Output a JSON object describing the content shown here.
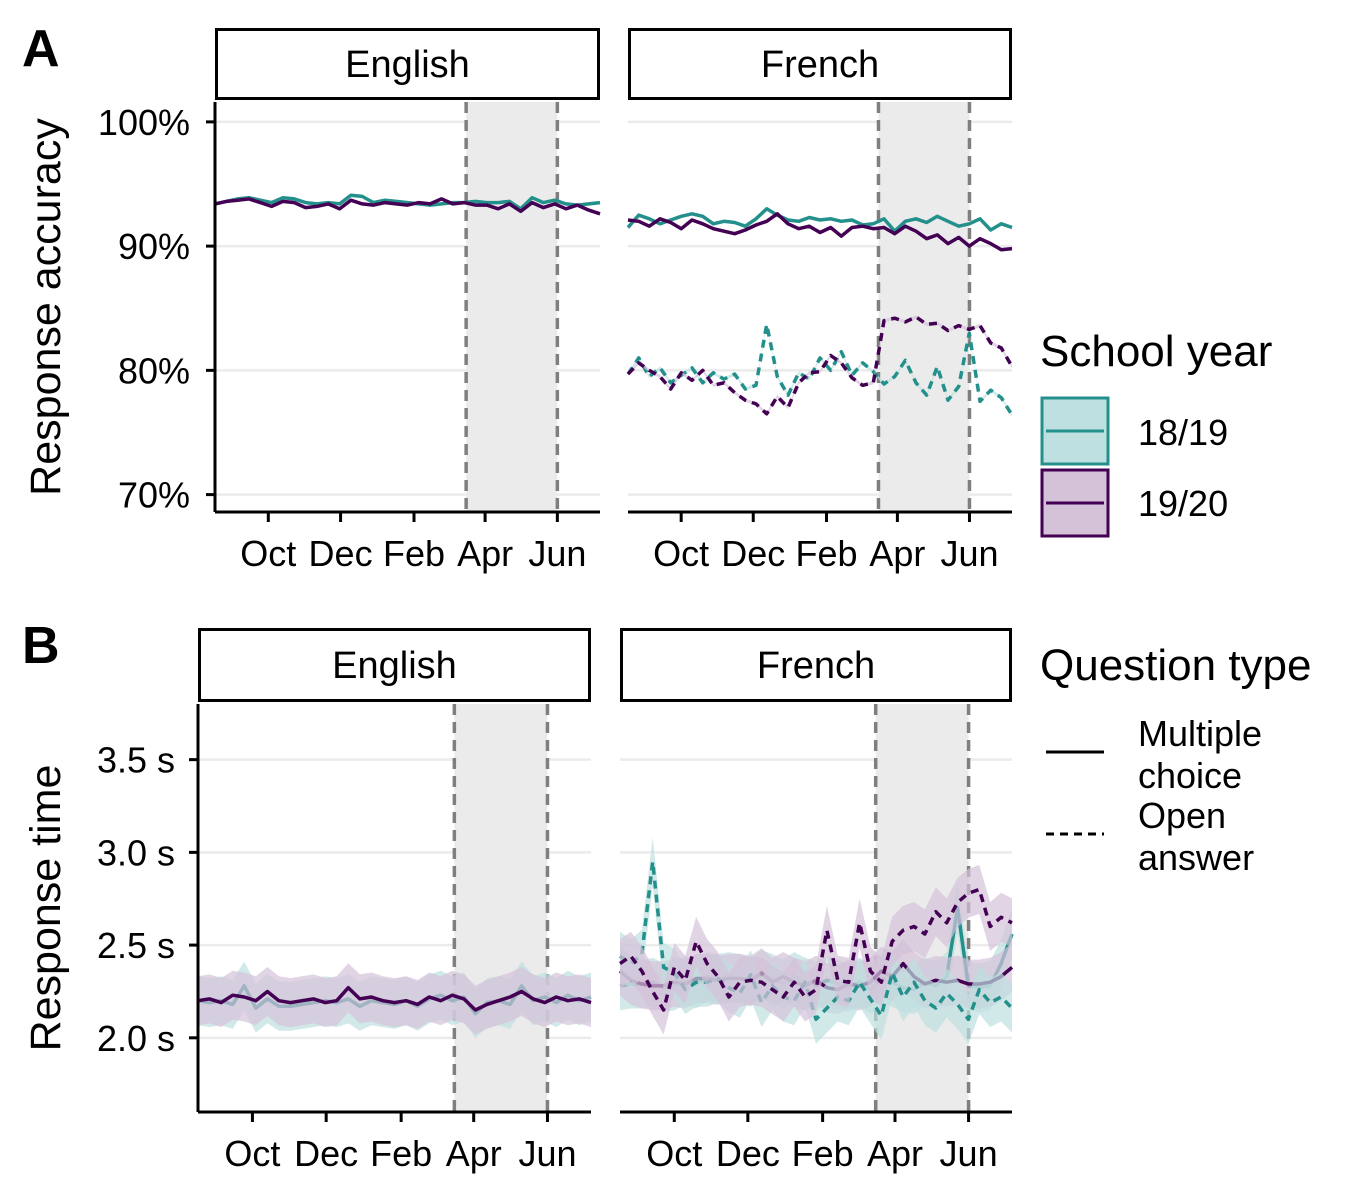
{
  "colors": {
    "year_18_19": "#24908c",
    "year_19_20": "#440154",
    "ribbon_18_19": "#bfe0e0",
    "ribbon_19_20": "#d4c2d9",
    "shade": "#ebebeb",
    "vline": "#7f7f7f",
    "grid": "#ebebeb"
  },
  "panel_labels": {
    "a": "A",
    "b": "B"
  },
  "legend": {
    "school_year_title": "School year",
    "school_years": [
      "18/19",
      "19/20"
    ],
    "question_type_title": "Question type",
    "question_types": [
      {
        "label_lines": [
          "Multiple",
          "choice"
        ],
        "linetype": "solid"
      },
      {
        "label_lines": [
          "Open",
          "answer"
        ],
        "linetype": "dashed"
      }
    ]
  },
  "chart_data": [
    {
      "id": "accuracy",
      "type": "line",
      "panel_label": "A",
      "ylabel": "Response accuracy",
      "ylim": [
        0.686,
        1.016
      ],
      "yticks": [
        0.7,
        0.8,
        0.9,
        1.0
      ],
      "ytick_labels": [
        "70%",
        "80%",
        "90%",
        "100%"
      ],
      "xlim": [
        "2019-08-17",
        "2020-07-07"
      ],
      "xticks": [
        "2019-10-01",
        "2019-12-01",
        "2020-02-01",
        "2020-04-01",
        "2020-06-01"
      ],
      "xtick_labels": [
        "Oct",
        "Dec",
        "Feb",
        "Apr",
        "Jun"
      ],
      "shaded_period": [
        "2020-03-16",
        "2020-06-01"
      ],
      "grid": true,
      "facets": [
        {
          "name": "English",
          "series": [
            {
              "name": "18/19",
              "linetype": "solid",
              "values": [
                0.934,
                0.936,
                0.938,
                0.939,
                0.937,
                0.935,
                0.939,
                0.938,
                0.935,
                0.934,
                0.935,
                0.934,
                0.941,
                0.94,
                0.935,
                0.937,
                0.936,
                0.935,
                0.934,
                0.933,
                0.934,
                0.935,
                0.935,
                0.936,
                0.935,
                0.935,
                0.936,
                0.93,
                0.939,
                0.935,
                0.937,
                0.934,
                0.933,
                0.934,
                0.935
              ]
            },
            {
              "name": "19/20",
              "linetype": "solid",
              "values": [
                0.934,
                0.936,
                0.937,
                0.938,
                0.935,
                0.932,
                0.936,
                0.935,
                0.931,
                0.932,
                0.934,
                0.93,
                0.937,
                0.934,
                0.933,
                0.935,
                0.934,
                0.933,
                0.935,
                0.934,
                0.938,
                0.934,
                0.935,
                0.933,
                0.933,
                0.93,
                0.934,
                0.928,
                0.935,
                0.931,
                0.934,
                0.93,
                0.933,
                0.929,
                0.926
              ]
            }
          ]
        },
        {
          "name": "French",
          "series": [
            {
              "name": "18/19",
              "linetype": "solid",
              "values": [
                0.915,
                0.925,
                0.922,
                0.918,
                0.921,
                0.924,
                0.926,
                0.924,
                0.918,
                0.92,
                0.919,
                0.916,
                0.922,
                0.93,
                0.925,
                0.921,
                0.92,
                0.923,
                0.921,
                0.922,
                0.92,
                0.921,
                0.917,
                0.918,
                0.922,
                0.912,
                0.92,
                0.922,
                0.919,
                0.924,
                0.92,
                0.916,
                0.918,
                0.922,
                0.913,
                0.918,
                0.915
              ]
            },
            {
              "name": "19/20",
              "linetype": "solid",
              "values": [
                0.921,
                0.92,
                0.916,
                0.922,
                0.919,
                0.914,
                0.921,
                0.918,
                0.914,
                0.912,
                0.91,
                0.913,
                0.917,
                0.92,
                0.926,
                0.918,
                0.914,
                0.916,
                0.911,
                0.915,
                0.908,
                0.915,
                0.916,
                0.914,
                0.915,
                0.91,
                0.916,
                0.912,
                0.906,
                0.909,
                0.902,
                0.907,
                0.9,
                0.906,
                0.902,
                0.897,
                0.898
              ]
            },
            {
              "name": "18/19",
              "linetype": "dashed",
              "values": [
                0.797,
                0.81,
                0.795,
                0.802,
                0.79,
                0.796,
                0.802,
                0.79,
                0.798,
                0.793,
                0.797,
                0.785,
                0.788,
                0.837,
                0.795,
                0.78,
                0.798,
                0.793,
                0.81,
                0.8,
                0.815,
                0.796,
                0.806,
                0.799,
                0.789,
                0.795,
                0.808,
                0.79,
                0.78,
                0.803,
                0.776,
                0.787,
                0.83,
                0.775,
                0.784,
                0.778,
                0.764
              ]
            },
            {
              "name": "19/20",
              "linetype": "dashed",
              "values": [
                0.797,
                0.806,
                0.8,
                0.795,
                0.785,
                0.798,
                0.792,
                0.8,
                0.788,
                0.79,
                0.782,
                0.776,
                0.773,
                0.765,
                0.779,
                0.77,
                0.79,
                0.798,
                0.799,
                0.812,
                0.806,
                0.794,
                0.788,
                0.79,
                0.84,
                0.842,
                0.839,
                0.843,
                0.837,
                0.838,
                0.832,
                0.836,
                0.833,
                0.836,
                0.822,
                0.818,
                0.803
              ]
            }
          ]
        }
      ]
    },
    {
      "id": "response_time",
      "type": "line",
      "panel_label": "B",
      "ylabel": "Response time",
      "ylim": [
        1.6,
        3.8
      ],
      "yticks": [
        2.0,
        2.5,
        3.0,
        3.5
      ],
      "ytick_labels": [
        "2.0 s",
        "2.5 s",
        "3.0 s",
        "3.5 s"
      ],
      "xlim": [
        "2019-08-17",
        "2020-07-07"
      ],
      "xticks": [
        "2019-10-01",
        "2019-12-01",
        "2020-02-01",
        "2020-04-01",
        "2020-06-01"
      ],
      "xtick_labels": [
        "Oct",
        "Dec",
        "Feb",
        "Apr",
        "Jun"
      ],
      "shaded_period": [
        "2020-03-16",
        "2020-06-01"
      ],
      "grid": true,
      "facets": [
        {
          "name": "English",
          "series": [
            {
              "name": "18/19",
              "linetype": "solid",
              "values": [
                2.2,
                2.19,
                2.2,
                2.18,
                2.28,
                2.16,
                2.21,
                2.17,
                2.17,
                2.18,
                2.19,
                2.2,
                2.19,
                2.21,
                2.17,
                2.2,
                2.19,
                2.18,
                2.2,
                2.17,
                2.21,
                2.23,
                2.2,
                2.22,
                2.13,
                2.19,
                2.2,
                2.18,
                2.28,
                2.2,
                2.22,
                2.19,
                2.23,
                2.2,
                2.22
              ]
            },
            {
              "name": "19/20",
              "linetype": "solid",
              "values": [
                2.2,
                2.21,
                2.19,
                2.23,
                2.22,
                2.2,
                2.25,
                2.2,
                2.19,
                2.2,
                2.21,
                2.19,
                2.2,
                2.27,
                2.21,
                2.22,
                2.2,
                2.19,
                2.2,
                2.18,
                2.22,
                2.2,
                2.23,
                2.21,
                2.15,
                2.18,
                2.2,
                2.22,
                2.25,
                2.21,
                2.19,
                2.22,
                2.2,
                2.21,
                2.19
              ]
            }
          ]
        },
        {
          "name": "French",
          "series": [
            {
              "name": "18/19",
              "linetype": "solid",
              "values": [
                2.28,
                2.29,
                2.29,
                2.3,
                2.27,
                2.28,
                2.31,
                2.29,
                2.33,
                2.32,
                2.33,
                2.32,
                2.3,
                2.34,
                2.32,
                2.29,
                2.33,
                2.3,
                2.28,
                2.31,
                2.29,
                2.27,
                2.3,
                2.26,
                2.32,
                2.3,
                2.27,
                2.26,
                2.3,
                2.28,
                2.33,
                2.7,
                2.28,
                2.27,
                2.28,
                2.4,
                2.56
              ]
            },
            {
              "name": "19/20",
              "linetype": "solid",
              "values": [
                2.36,
                2.31,
                2.29,
                2.28,
                2.28,
                2.3,
                2.29,
                2.32,
                2.32,
                2.31,
                2.32,
                2.32,
                2.31,
                2.35,
                2.3,
                2.33,
                2.3,
                2.28,
                2.31,
                2.27,
                2.26,
                2.29,
                2.28,
                2.3,
                2.36,
                2.33,
                2.4,
                2.33,
                2.29,
                2.31,
                2.3,
                2.31,
                2.29,
                2.29,
                2.3,
                2.33,
                2.38
              ]
            },
            {
              "name": "18/19",
              "linetype": "dashed",
              "values": [
                2.44,
                2.4,
                2.45,
                2.95,
                2.38,
                2.35,
                2.26,
                2.3,
                2.3,
                2.32,
                2.27,
                2.24,
                2.34,
                2.19,
                2.28,
                2.22,
                2.2,
                2.3,
                2.1,
                2.16,
                2.22,
                2.2,
                2.3,
                2.21,
                2.12,
                2.35,
                2.22,
                2.3,
                2.2,
                2.16,
                2.24,
                2.18,
                2.1,
                2.26,
                2.19,
                2.22,
                2.16
              ]
            },
            {
              "name": "19/20",
              "linetype": "dashed",
              "values": [
                2.4,
                2.44,
                2.36,
                2.25,
                2.15,
                2.38,
                2.31,
                2.52,
                2.4,
                2.33,
                2.22,
                2.3,
                2.31,
                2.3,
                2.26,
                2.22,
                2.3,
                2.22,
                2.26,
                2.58,
                2.31,
                2.3,
                2.62,
                2.36,
                2.3,
                2.52,
                2.58,
                2.6,
                2.56,
                2.68,
                2.62,
                2.73,
                2.78,
                2.8,
                2.6,
                2.65,
                2.62
              ]
            }
          ]
        }
      ]
    }
  ]
}
